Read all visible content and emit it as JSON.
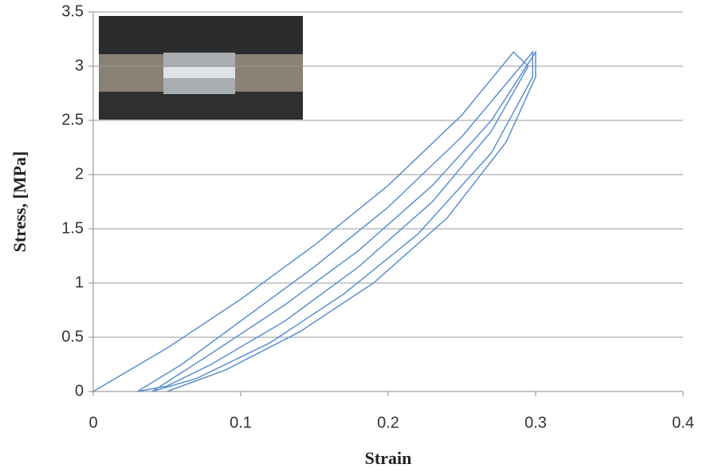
{
  "chart_data": {
    "type": "line",
    "xlabel": "Strain",
    "ylabel": "Stress, [MPa]",
    "xlim": [
      0,
      0.4
    ],
    "xticks": [
      0,
      0.1,
      0.2,
      0.3,
      0.4
    ],
    "ylim": [
      0,
      3.5
    ],
    "yticks": [
      0,
      0.5,
      1,
      1.5,
      2,
      2.5,
      3,
      3.5
    ],
    "grid": true,
    "series": [
      {
        "color": "#5b8fd0",
        "x": [
          0,
          0.05,
          0.1,
          0.15,
          0.2,
          0.25,
          0.285,
          0.295,
          0.27,
          0.23,
          0.18,
          0.13,
          0.08,
          0.05,
          0.03,
          0.06,
          0.1,
          0.15,
          0.2,
          0.25,
          0.29,
          0.298,
          0.298,
          0.27,
          0.22,
          0.17,
          0.12,
          0.07,
          0.04,
          0.08,
          0.13,
          0.18,
          0.23,
          0.27,
          0.3,
          0.3,
          0.28,
          0.24,
          0.19,
          0.14,
          0.09,
          0.05
        ],
        "values": [
          0,
          0.4,
          0.85,
          1.35,
          1.9,
          2.55,
          3.13,
          3.0,
          2.4,
          1.75,
          1.15,
          0.65,
          0.25,
          0.05,
          0,
          0.25,
          0.65,
          1.15,
          1.7,
          2.35,
          3.0,
          3.13,
          2.9,
          2.2,
          1.45,
          0.9,
          0.45,
          0.12,
          0,
          0.35,
          0.8,
          1.3,
          1.9,
          2.5,
          3.13,
          2.9,
          2.3,
          1.6,
          1.0,
          0.55,
          0.2,
          0
        ]
      }
    ]
  }
}
